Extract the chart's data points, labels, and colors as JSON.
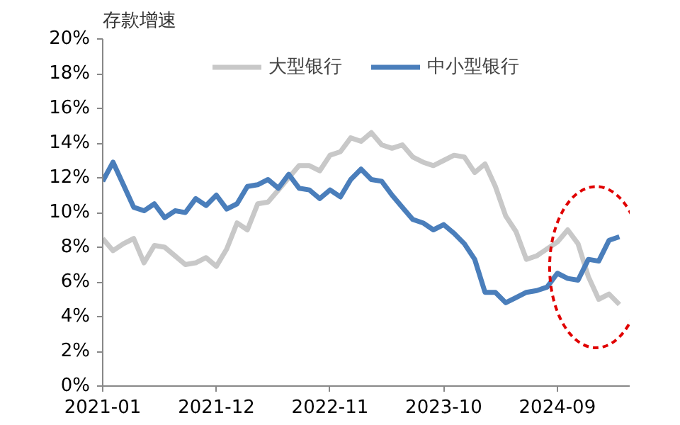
{
  "chart_data": {
    "type": "line",
    "title": "存款增速",
    "x": [
      "2021-01",
      "2021-02",
      "2021-03",
      "2021-04",
      "2021-05",
      "2021-06",
      "2021-07",
      "2021-08",
      "2021-09",
      "2021-10",
      "2021-11",
      "2021-12",
      "2022-01",
      "2022-02",
      "2022-03",
      "2022-04",
      "2022-05",
      "2022-06",
      "2022-07",
      "2022-08",
      "2022-09",
      "2022-10",
      "2022-11",
      "2022-12",
      "2023-01",
      "2023-02",
      "2023-03",
      "2023-04",
      "2023-05",
      "2023-06",
      "2023-07",
      "2023-08",
      "2023-09",
      "2023-10",
      "2023-11",
      "2023-12",
      "2024-01",
      "2024-02",
      "2024-03",
      "2024-04",
      "2024-05",
      "2024-06",
      "2024-07",
      "2024-08",
      "2024-09",
      "2024-10",
      "2024-11",
      "2024-12",
      "2025-01",
      "2025-02",
      "2025-03"
    ],
    "series": [
      {
        "name": "大型银行",
        "color": "#c8c8c8",
        "values": [
          8.5,
          7.8,
          8.2,
          8.5,
          7.1,
          8.1,
          8.0,
          7.5,
          7.0,
          7.1,
          7.4,
          6.9,
          7.9,
          9.4,
          9.0,
          10.5,
          10.6,
          11.3,
          12.0,
          12.7,
          12.7,
          12.4,
          13.3,
          13.5,
          14.3,
          14.1,
          14.6,
          13.9,
          13.7,
          13.9,
          13.2,
          12.9,
          12.7,
          13.0,
          13.3,
          13.2,
          12.3,
          12.8,
          11.5,
          9.8,
          8.9,
          7.3,
          7.5,
          7.9,
          8.3,
          9.0,
          8.2,
          6.3,
          5.0,
          5.3,
          4.7
        ]
      },
      {
        "name": "中小型银行",
        "color": "#4a7ebb",
        "values": [
          11.8,
          12.9,
          11.6,
          10.3,
          10.1,
          10.5,
          9.7,
          10.1,
          10.0,
          10.8,
          10.4,
          11.0,
          10.2,
          10.5,
          11.5,
          11.6,
          11.9,
          11.4,
          12.2,
          11.4,
          11.3,
          10.8,
          11.3,
          10.9,
          11.9,
          12.5,
          11.9,
          11.8,
          11.0,
          10.3,
          9.6,
          9.4,
          9.0,
          9.3,
          8.8,
          8.2,
          7.3,
          5.4,
          5.4,
          4.8,
          5.1,
          5.4,
          5.5,
          5.7,
          6.5,
          6.2,
          6.1,
          7.3,
          7.2,
          8.4,
          8.6
        ]
      }
    ],
    "xlim": [
      "2021-01",
      "2025-04"
    ],
    "xticks": [
      {
        "value": "2021-01",
        "label": "2021-01"
      },
      {
        "value": "2021-12",
        "label": "2021-12"
      },
      {
        "value": "2022-11",
        "label": "2022-11"
      },
      {
        "value": "2023-10",
        "label": "2023-10"
      },
      {
        "value": "2024-09",
        "label": "2024-09"
      }
    ],
    "ylim": [
      0,
      20
    ],
    "yticks": [
      {
        "value": 0,
        "label": "0%"
      },
      {
        "value": 2,
        "label": "2%"
      },
      {
        "value": 4,
        "label": "4%"
      },
      {
        "value": 6,
        "label": "6%"
      },
      {
        "value": 8,
        "label": "8%"
      },
      {
        "value": 10,
        "label": "10%"
      },
      {
        "value": 12,
        "label": "12%"
      },
      {
        "value": 14,
        "label": "14%"
      },
      {
        "value": 16,
        "label": "16%"
      },
      {
        "value": 18,
        "label": "18%"
      },
      {
        "value": 20,
        "label": "20%"
      }
    ],
    "grid": false,
    "legend": "top",
    "marker": "none",
    "line_style": "solid"
  }
}
